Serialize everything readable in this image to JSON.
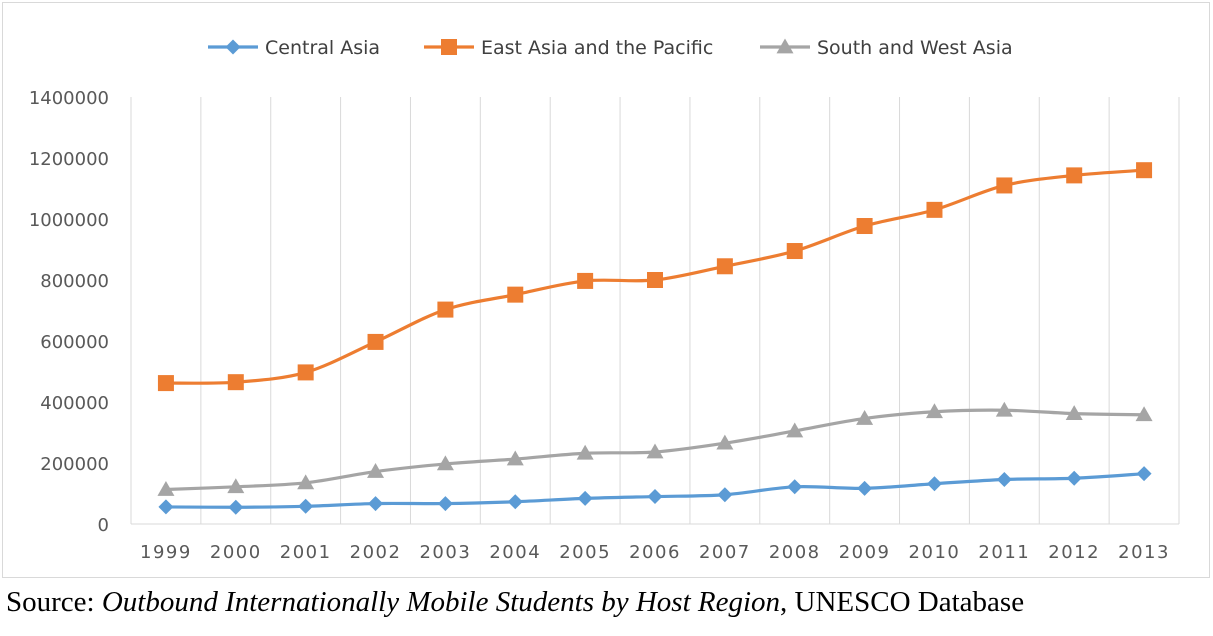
{
  "chart_data": {
    "type": "line",
    "title": "",
    "xlabel": "",
    "ylabel": "",
    "categories": [
      "1999",
      "2000",
      "2001",
      "2002",
      "2003",
      "2004",
      "2005",
      "2006",
      "2007",
      "2008",
      "2009",
      "2010",
      "2011",
      "2012",
      "2013"
    ],
    "ylim": [
      0,
      1400000
    ],
    "yticks": [
      0,
      200000,
      400000,
      600000,
      800000,
      1000000,
      1200000,
      1400000
    ],
    "ytick_labels": [
      "0",
      "200000",
      "400000",
      "600000",
      "800000",
      "1000000",
      "1200000",
      "1400000"
    ],
    "grid": "vertical",
    "legend_position": "top",
    "series": [
      {
        "name": "Central Asia",
        "color": "#5b9bd5",
        "marker": "diamond",
        "values": [
          56000,
          55000,
          58000,
          67000,
          67000,
          73000,
          84000,
          90000,
          96000,
          122000,
          117000,
          132000,
          146000,
          150000,
          165000
        ]
      },
      {
        "name": "East Asia and the Pacific",
        "color": "#ed7d31",
        "marker": "square",
        "values": [
          462000,
          465000,
          497000,
          597000,
          703000,
          752000,
          797000,
          800000,
          845000,
          895000,
          977000,
          1030000,
          1110000,
          1143000,
          1160000
        ]
      },
      {
        "name": "South and West Asia",
        "color": "#a5a5a5",
        "marker": "triangle",
        "values": [
          113000,
          122000,
          135000,
          172000,
          197000,
          213000,
          232000,
          236000,
          265000,
          305000,
          346000,
          368000,
          373000,
          362000,
          358000
        ]
      }
    ]
  },
  "source": {
    "prefix": "Source: ",
    "title": "Outbound Internationally Mobile Students by Host Region",
    "suffix": ", UNESCO Database"
  }
}
